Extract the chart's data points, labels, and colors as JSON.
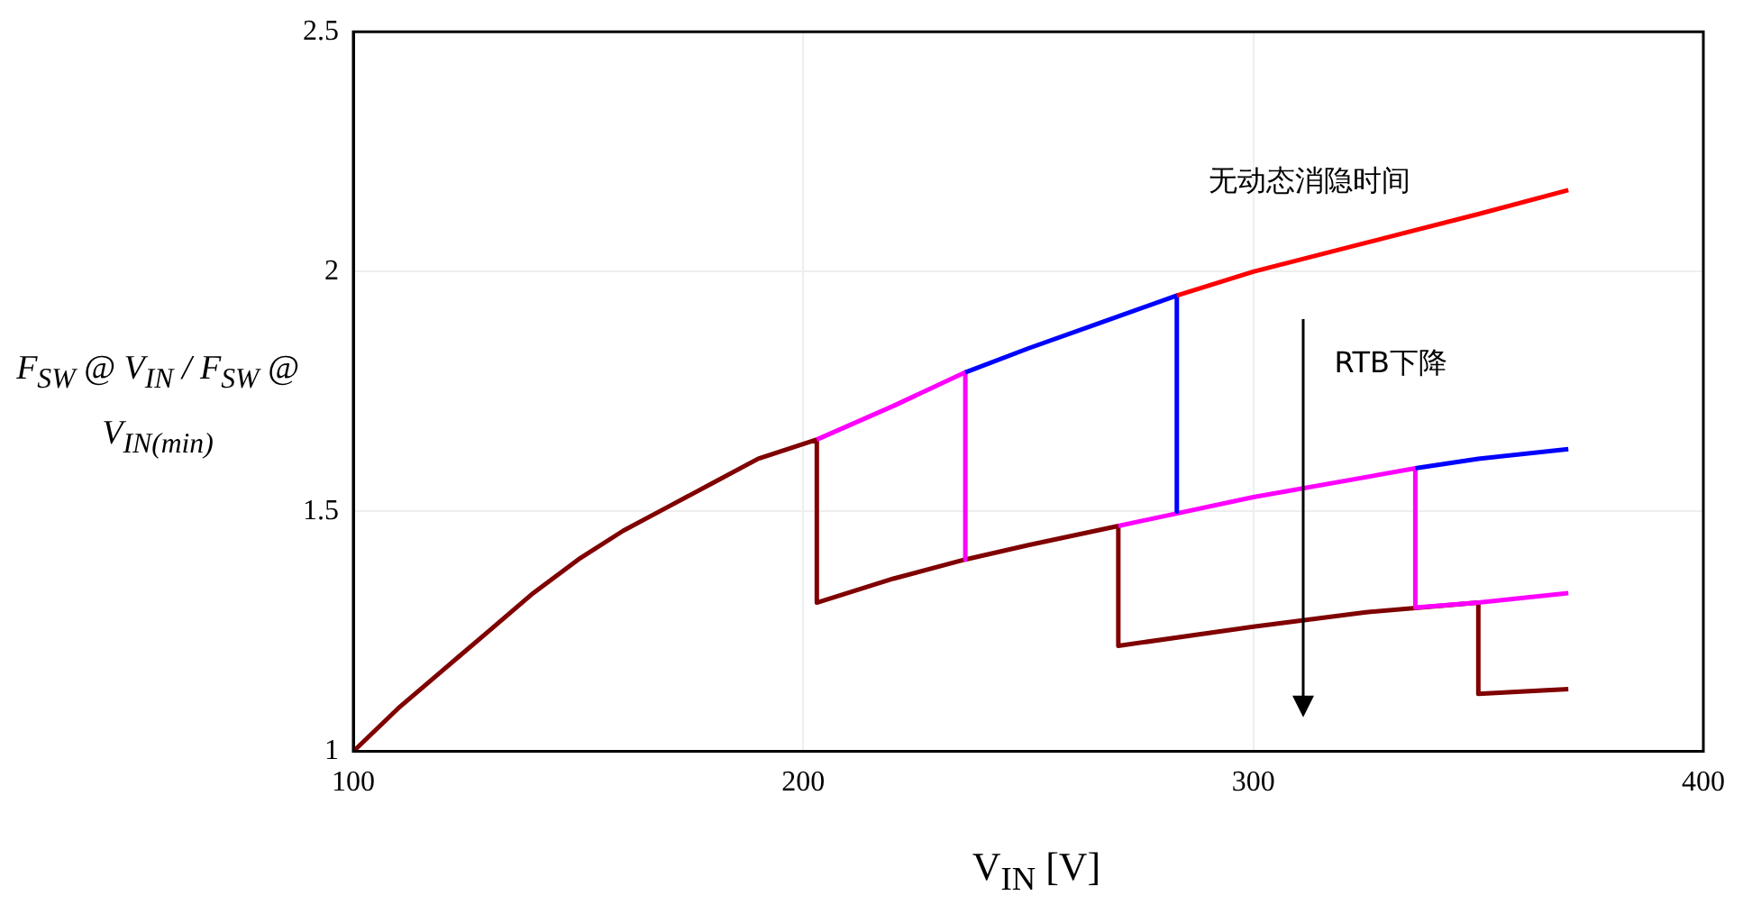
{
  "chart_data": {
    "type": "line",
    "xlabel": "V$_{IN}$ [V]",
    "ylabel": "F$_{SW}$ @ V$_{IN}$ / F$_{SW}$ @ V$_{IN(min)}$",
    "xlim": [
      100,
      400
    ],
    "xticks": [
      100,
      200,
      300,
      400
    ],
    "ylim": [
      1,
      2.5
    ],
    "yticks": [
      1,
      1.5,
      2,
      2.5
    ],
    "grid": true,
    "legend": false,
    "marker": "none",
    "line_style": "solid",
    "annotations": [
      "无动态消隐时间",
      "RTB下降"
    ],
    "series": [
      {
        "color": "#ff0000",
        "x": [
          283,
          300,
          325,
          350,
          370
        ],
        "values": [
          1.95,
          2.0,
          2.06,
          2.12,
          2.17
        ]
      },
      {
        "color": "#0000ff",
        "x": [
          236,
          250,
          265,
          283,
          283
        ],
        "values": [
          1.79,
          1.84,
          1.89,
          1.95,
          1.5
        ]
      },
      {
        "color": "#0000ff",
        "x": [
          336,
          350,
          370
        ],
        "values": [
          1.59,
          1.61,
          1.63
        ]
      },
      {
        "color": "#ff00ff",
        "x": [
          203,
          220,
          236,
          236
        ],
        "values": [
          1.65,
          1.72,
          1.79,
          1.4
        ]
      },
      {
        "color": "#ff00ff",
        "x": [
          270,
          300,
          336,
          336,
          350,
          370
        ],
        "values": [
          1.47,
          1.53,
          1.59,
          1.3,
          1.31,
          1.33
        ]
      },
      {
        "color": "#800000",
        "x": [
          100,
          110,
          120,
          130,
          140,
          150,
          160,
          170,
          180,
          190,
          203,
          203,
          220,
          236,
          250,
          270,
          270,
          300,
          325,
          350,
          350,
          370
        ],
        "values": [
          1.0,
          1.09,
          1.17,
          1.25,
          1.33,
          1.4,
          1.46,
          1.51,
          1.56,
          1.61,
          1.65,
          1.31,
          1.36,
          1.4,
          1.43,
          1.47,
          1.22,
          1.26,
          1.29,
          1.31,
          1.12,
          1.13
        ]
      }
    ]
  }
}
